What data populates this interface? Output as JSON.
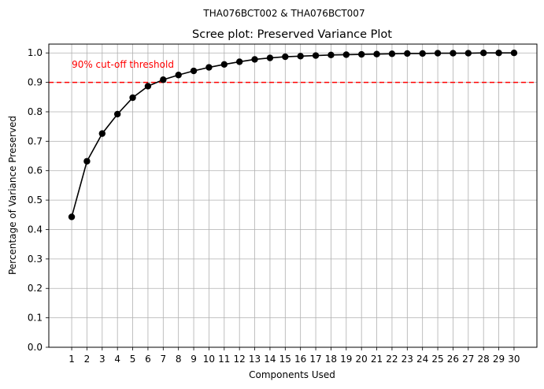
{
  "chart_data": {
    "type": "line",
    "suptitle": "THA076BCT002 & THA076BCT007",
    "title": "Scree plot: Preserved Variance Plot",
    "xlabel": "Components Used",
    "ylabel": "Percentage of Variance Preserved",
    "x": [
      1,
      2,
      3,
      4,
      5,
      6,
      7,
      8,
      9,
      10,
      11,
      12,
      13,
      14,
      15,
      16,
      17,
      18,
      19,
      20,
      21,
      22,
      23,
      24,
      25,
      26,
      27,
      28,
      29,
      30
    ],
    "x_tick_labels": [
      "1",
      "2",
      "3",
      "4",
      "5",
      "6",
      "7",
      "8",
      "9",
      "10",
      "11",
      "12",
      "13",
      "14",
      "15",
      "16",
      "17",
      "18",
      "19",
      "20",
      "21",
      "22",
      "23",
      "24",
      "25",
      "26",
      "27",
      "28",
      "29",
      "30"
    ],
    "y": [
      0.443,
      0.632,
      0.726,
      0.792,
      0.848,
      0.887,
      0.909,
      0.925,
      0.939,
      0.951,
      0.961,
      0.97,
      0.978,
      0.983,
      0.987,
      0.989,
      0.991,
      0.993,
      0.994,
      0.995,
      0.996,
      0.997,
      0.998,
      0.998,
      0.999,
      0.999,
      0.999,
      1.0,
      1.0,
      1.0
    ],
    "xlim": [
      -0.5,
      31.5
    ],
    "ylim": [
      0.0,
      1.03
    ],
    "y_ticks": [
      0.0,
      0.1,
      0.2,
      0.3,
      0.4,
      0.5,
      0.6,
      0.7,
      0.8,
      0.9,
      1.0
    ],
    "y_tick_labels": [
      "0.0",
      "0.1",
      "0.2",
      "0.3",
      "0.4",
      "0.5",
      "0.6",
      "0.7",
      "0.8",
      "0.9",
      "1.0"
    ],
    "grid": true,
    "threshold": {
      "value": 0.9,
      "label": "90% cut-off threshold",
      "label_x": 1,
      "label_y": 0.96,
      "color": "#ff0000"
    },
    "series_color": "#000000",
    "grid_color": "#b0b0b0"
  }
}
